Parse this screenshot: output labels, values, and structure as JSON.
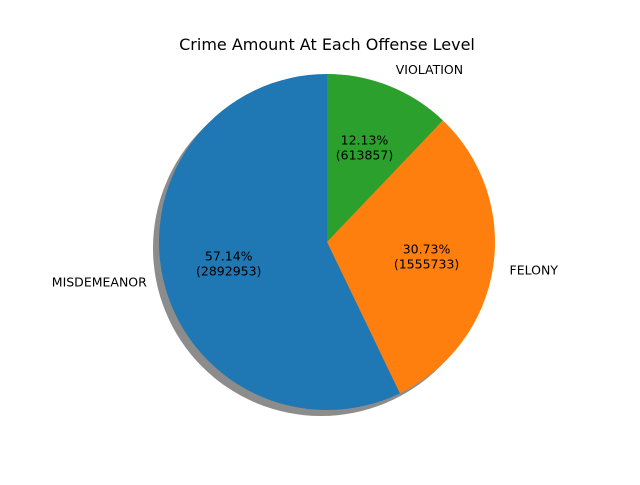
{
  "chart_data": {
    "type": "pie",
    "title": "Crime Amount At Each Offense Level",
    "start_angle_deg": 90,
    "direction": "clockwise",
    "shadow": true,
    "slices": [
      {
        "label": "VIOLATION",
        "value": 613857,
        "percent_text": "12.13%",
        "count_text": "(613857)",
        "color": "#2ca02c"
      },
      {
        "label": "FELONY",
        "value": 1555733,
        "percent_text": "30.73%",
        "count_text": "(1555733)",
        "color": "#ff7f0e"
      },
      {
        "label": "MISDEMEANOR",
        "value": 2892953,
        "percent_text": "57.14%",
        "count_text": "(2892953)",
        "color": "#1f77b4"
      }
    ]
  }
}
